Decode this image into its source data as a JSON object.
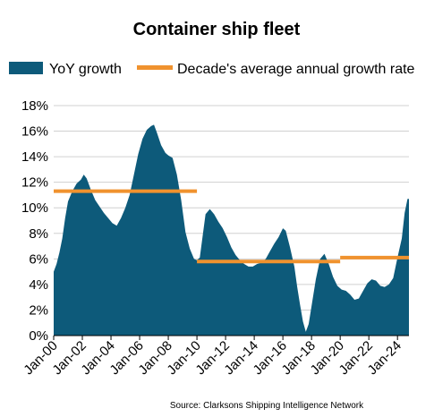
{
  "chart_data": {
    "type": "area",
    "title": "Container ship fleet",
    "source": "Source: Clarksons Shipping Intelligence Network",
    "ylim": [
      0,
      18
    ],
    "yticks": [
      "0%",
      "2%",
      "4%",
      "6%",
      "8%",
      "10%",
      "12%",
      "14%",
      "16%",
      "18%"
    ],
    "xticks": [
      "Jan-00",
      "Jan-02",
      "Jan-04",
      "Jan-06",
      "Jan-08",
      "Jan-10",
      "Jan-12",
      "Jan-14",
      "Jan-16",
      "Jan-18",
      "Jan-20",
      "Jan-22",
      "Jan-24"
    ],
    "xlim": [
      2000,
      2024.8
    ],
    "grid": "horizontal",
    "legend_position": "top",
    "colors": {
      "area": "#0d5a7a",
      "line": "#f0922e",
      "grid": "#d0d0d0"
    },
    "series": [
      {
        "name": "YoY growth",
        "type": "area",
        "points": [
          [
            2000.0,
            5.0
          ],
          [
            2000.2,
            5.6
          ],
          [
            2000.4,
            6.5
          ],
          [
            2000.6,
            7.6
          ],
          [
            2000.8,
            9.2
          ],
          [
            2001.0,
            10.5
          ],
          [
            2001.3,
            11.3
          ],
          [
            2001.6,
            11.9
          ],
          [
            2001.9,
            12.2
          ],
          [
            2002.1,
            12.6
          ],
          [
            2002.3,
            12.3
          ],
          [
            2002.6,
            11.4
          ],
          [
            2002.9,
            10.6
          ],
          [
            2003.2,
            10.1
          ],
          [
            2003.5,
            9.6
          ],
          [
            2003.8,
            9.2
          ],
          [
            2004.1,
            8.8
          ],
          [
            2004.4,
            8.6
          ],
          [
            2004.7,
            9.2
          ],
          [
            2005.0,
            10.0
          ],
          [
            2005.3,
            11.0
          ],
          [
            2005.6,
            12.6
          ],
          [
            2005.9,
            14.2
          ],
          [
            2006.2,
            15.4
          ],
          [
            2006.5,
            16.1
          ],
          [
            2006.8,
            16.4
          ],
          [
            2007.0,
            16.5
          ],
          [
            2007.2,
            15.9
          ],
          [
            2007.5,
            14.9
          ],
          [
            2007.8,
            14.3
          ],
          [
            2008.0,
            14.1
          ],
          [
            2008.3,
            13.9
          ],
          [
            2008.6,
            12.6
          ],
          [
            2008.9,
            10.6
          ],
          [
            2009.2,
            8.1
          ],
          [
            2009.5,
            6.8
          ],
          [
            2009.8,
            6.0
          ],
          [
            2010.0,
            5.9
          ],
          [
            2010.2,
            6.1
          ],
          [
            2010.4,
            7.8
          ],
          [
            2010.6,
            9.5
          ],
          [
            2010.9,
            9.9
          ],
          [
            2011.2,
            9.5
          ],
          [
            2011.5,
            8.9
          ],
          [
            2011.8,
            8.4
          ],
          [
            2012.1,
            7.7
          ],
          [
            2012.4,
            6.9
          ],
          [
            2012.7,
            6.3
          ],
          [
            2013.0,
            5.9
          ],
          [
            2013.3,
            5.6
          ],
          [
            2013.6,
            5.4
          ],
          [
            2013.9,
            5.4
          ],
          [
            2014.2,
            5.6
          ],
          [
            2014.5,
            5.7
          ],
          [
            2014.8,
            6.0
          ],
          [
            2015.1,
            6.6
          ],
          [
            2015.4,
            7.2
          ],
          [
            2015.7,
            7.7
          ],
          [
            2016.0,
            8.4
          ],
          [
            2016.2,
            8.2
          ],
          [
            2016.5,
            6.9
          ],
          [
            2016.8,
            5.4
          ],
          [
            2017.0,
            3.8
          ],
          [
            2017.2,
            2.4
          ],
          [
            2017.4,
            1.1
          ],
          [
            2017.6,
            0.3
          ],
          [
            2017.8,
            0.9
          ],
          [
            2018.0,
            2.3
          ],
          [
            2018.3,
            4.4
          ],
          [
            2018.6,
            6.0
          ],
          [
            2018.9,
            6.4
          ],
          [
            2019.2,
            5.6
          ],
          [
            2019.5,
            4.6
          ],
          [
            2019.8,
            3.9
          ],
          [
            2020.1,
            3.6
          ],
          [
            2020.4,
            3.5
          ],
          [
            2020.7,
            3.2
          ],
          [
            2021.0,
            2.8
          ],
          [
            2021.3,
            2.9
          ],
          [
            2021.6,
            3.5
          ],
          [
            2021.9,
            4.1
          ],
          [
            2022.2,
            4.4
          ],
          [
            2022.5,
            4.3
          ],
          [
            2022.8,
            3.9
          ],
          [
            2023.1,
            3.8
          ],
          [
            2023.4,
            4.0
          ],
          [
            2023.7,
            4.5
          ],
          [
            2024.0,
            6.1
          ],
          [
            2024.3,
            7.6
          ],
          [
            2024.5,
            9.6
          ],
          [
            2024.7,
            10.7
          ],
          [
            2024.8,
            10.7
          ]
        ]
      },
      {
        "name": "Decade's average annual growth rate",
        "type": "step",
        "segments": [
          {
            "x": [
              2000,
              2010
            ],
            "y": 11.3
          },
          {
            "x": [
              2010,
              2020
            ],
            "y": 5.8
          },
          {
            "x": [
              2020,
              2024.8
            ],
            "y": 6.1
          }
        ]
      }
    ]
  }
}
